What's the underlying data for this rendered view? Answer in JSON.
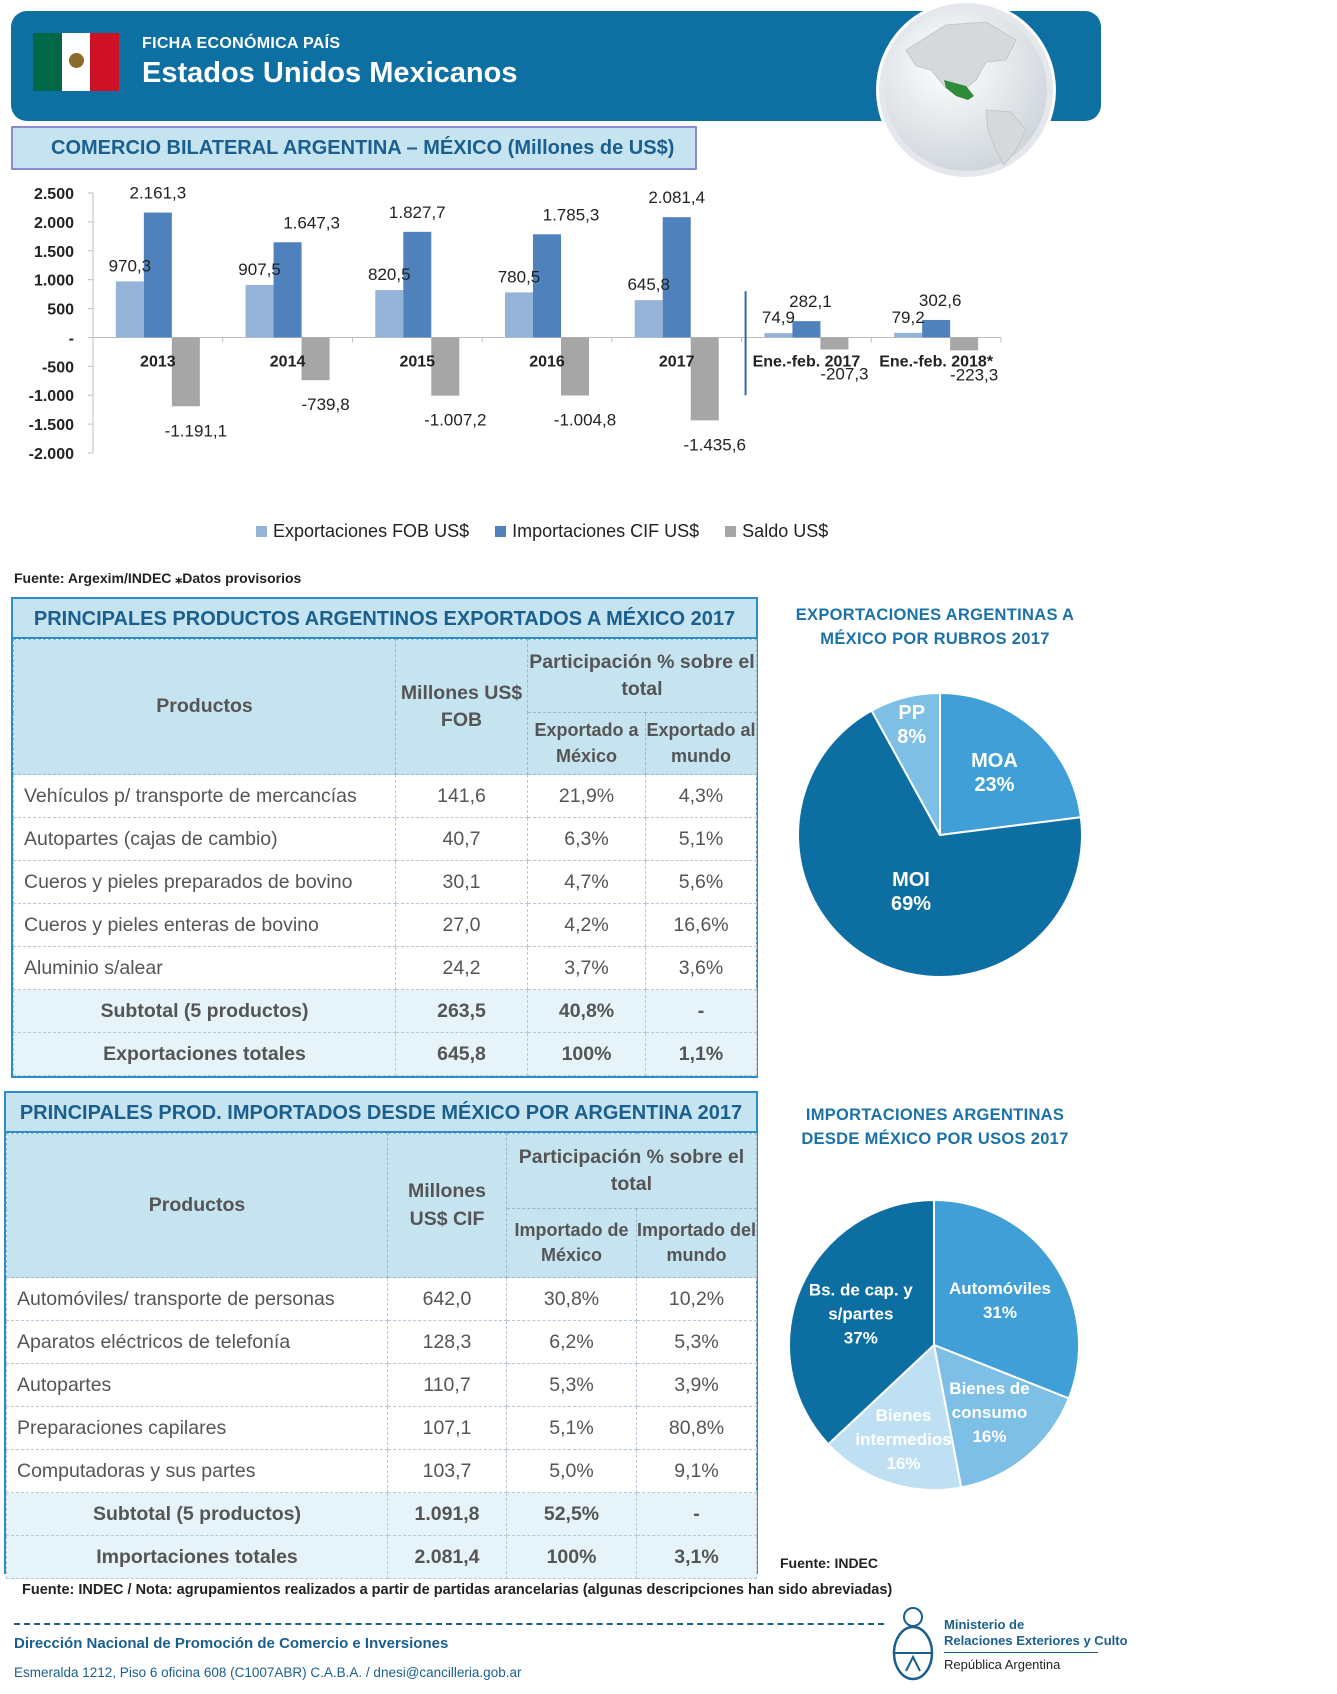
{
  "header": {
    "kicker": "FICHA ECONÓMICA PAÍS",
    "title": "Estados Unidos Mexicanos",
    "colors": {
      "bar": "#0e6fa2",
      "accent": "#3f90c2"
    }
  },
  "bilateral": {
    "title": "COMERCIO BILATERAL ARGENTINA – MÉXICO  (Millones de US$)",
    "source_note": "Fuente: Argexim/INDEC ⁎Datos provisorios"
  },
  "chart_data": {
    "type": "bar",
    "title": "COMERCIO BILATERAL ARGENTINA – MÉXICO  (Millones de US$)",
    "categories": [
      "2013",
      "2014",
      "2015",
      "2016",
      "2017",
      "Ene.-feb. 2017",
      "Ene.-feb. 2018*"
    ],
    "series": [
      {
        "name": "Exportaciones FOB US$",
        "color": "#95b3d7",
        "values": [
          970.3,
          907.5,
          820.5,
          780.5,
          645.8,
          74.9,
          79.2
        ],
        "labels": [
          "970,3",
          "907,5",
          "820,5",
          "780,5",
          "645,8",
          "74,9",
          "79,2"
        ]
      },
      {
        "name": "Importaciones CIF US$",
        "color": "#4f81bd",
        "values": [
          2161.3,
          1647.3,
          1827.7,
          1785.3,
          2081.4,
          282.1,
          302.6
        ],
        "labels": [
          "2.161,3",
          "1.647,3",
          "1.827,7",
          "1.785,3",
          "2.081,4",
          "282,1",
          "302,6"
        ]
      },
      {
        "name": "Saldo US$",
        "color": "#a6a6a6",
        "values": [
          -1191.1,
          -739.8,
          -1007.2,
          -1004.8,
          -1435.6,
          -207.3,
          -223.3
        ],
        "labels": [
          "-1.191,1",
          "-739,8",
          "-1.007,2",
          "-1.004,8",
          "-1.435,6",
          "-207,3",
          "-223,3"
        ]
      }
    ],
    "ylim": [
      -2000,
      2500
    ],
    "yticks": [
      2500,
      2000,
      1500,
      1000,
      500,
      0,
      -500,
      -1000,
      -1500,
      -2000
    ],
    "ytick_labels": [
      "2.500",
      "2.000",
      "1.500",
      "1.000",
      "500",
      "-",
      "-500",
      "-1.000",
      "-1.500",
      "-2.000"
    ],
    "legend": "bottom",
    "grid": false
  },
  "exports_table": {
    "title": "PRINCIPALES PRODUCTOS ARGENTINOS EXPORTADOS A MÉXICO 2017",
    "head_product": "Productos",
    "head_value": "Millones US$ FOB",
    "head_share": "Participación % sobre el total",
    "head_share_a": "Exportado a México",
    "head_share_b": "Exportado al mundo",
    "rows": [
      {
        "p": "Vehículos p/ transporte de mercancías",
        "v": "141,6",
        "a": "21,9%",
        "b": "4,3%"
      },
      {
        "p": "Autopartes (cajas de cambio)",
        "v": "40,7",
        "a": "6,3%",
        "b": "5,1%"
      },
      {
        "p": "Cueros y pieles preparados de bovino",
        "v": "30,1",
        "a": "4,7%",
        "b": "5,6%"
      },
      {
        "p": "Cueros y pieles enteras de bovino",
        "v": "27,0",
        "a": "4,2%",
        "b": "16,6%"
      },
      {
        "p": "Aluminio s/alear",
        "v": "24,2",
        "a": "3,7%",
        "b": "3,6%"
      }
    ],
    "subtotal": {
      "p": "Subtotal (5 productos)",
      "v": "263,5",
      "a": "40,8%",
      "b": "-"
    },
    "total": {
      "p": "Exportaciones totales",
      "v": "645,8",
      "a": "100%",
      "b": "1,1%"
    }
  },
  "imports_table": {
    "title": "PRINCIPALES PROD. IMPORTADOS DESDE MÉXICO POR ARGENTINA 2017",
    "head_product": "Productos",
    "head_value": "Millones US$ CIF",
    "head_share": "Participación % sobre el total",
    "head_share_a": "Importado de México",
    "head_share_b": "Importado del mundo",
    "rows": [
      {
        "p": "Automóviles/ transporte de personas",
        "v": "642,0",
        "a": "30,8%",
        "b": "10,2%"
      },
      {
        "p": "Aparatos eléctricos de telefonía",
        "v": "128,3",
        "a": "6,2%",
        "b": "5,3%"
      },
      {
        "p": "Autopartes",
        "v": "110,7",
        "a": "5,3%",
        "b": "3,9%"
      },
      {
        "p": "Preparaciones capilares",
        "v": "107,1",
        "a": "5,1%",
        "b": "80,8%"
      },
      {
        "p": "Computadoras y sus partes",
        "v": "103,7",
        "a": "5,0%",
        "b": "9,1%"
      }
    ],
    "subtotal": {
      "p": "Subtotal (5 productos)",
      "v": "1.091,8",
      "a": "52,5%",
      "b": "-"
    },
    "total": {
      "p": "Importaciones totales",
      "v": "2.081,4",
      "a": "100%",
      "b": "3,1%"
    }
  },
  "pie_exports": {
    "title": "EXPORTACIONES ARGENTINAS A MÉXICO POR RUBROS 2017",
    "slices": [
      {
        "label": "MOA",
        "pct": "23%",
        "value": 23,
        "color": "#3f9fd6"
      },
      {
        "label": "MOI",
        "pct": "69%",
        "value": 69,
        "color": "#0d6fa1"
      },
      {
        "label": "PP",
        "pct": "8%",
        "value": 8,
        "color": "#7ebfe6"
      }
    ]
  },
  "pie_imports": {
    "title": "IMPORTACIONES ARGENTINAS DESDE MÉXICO POR USOS 2017",
    "source": "Fuente: INDEC",
    "slices": [
      {
        "label": "Automóviles",
        "pct": "31%",
        "value": 31,
        "color": "#3f9fd6"
      },
      {
        "label": "Bienes de consumo",
        "pct": "16%",
        "value": 16,
        "color": "#7ebfe6"
      },
      {
        "label": "Bienes intermedios",
        "pct": "16%",
        "value": 16,
        "color": "#bfe0f3"
      },
      {
        "label": "Bs. de cap. y s/partes",
        "pct": "37%",
        "value": 37,
        "color": "#0d6fa1"
      }
    ]
  },
  "footnote": "Fuente: INDEC / Nota: agrupamientos realizados a partir de partidas arancelarias (algunas descripciones han sido abreviadas)",
  "footer": {
    "office": "Dirección Nacional de  Promoción de Comercio e Inversiones",
    "address": "Esmeralda 1212, Piso 6 oficina 608 (C1007ABR) C.A.B.A. / dnesi@cancilleria.gob.ar",
    "ministry_line1": "Ministerio de",
    "ministry_line2": "Relaciones Exteriores y Culto",
    "ministry_line3": "República Argentina"
  }
}
